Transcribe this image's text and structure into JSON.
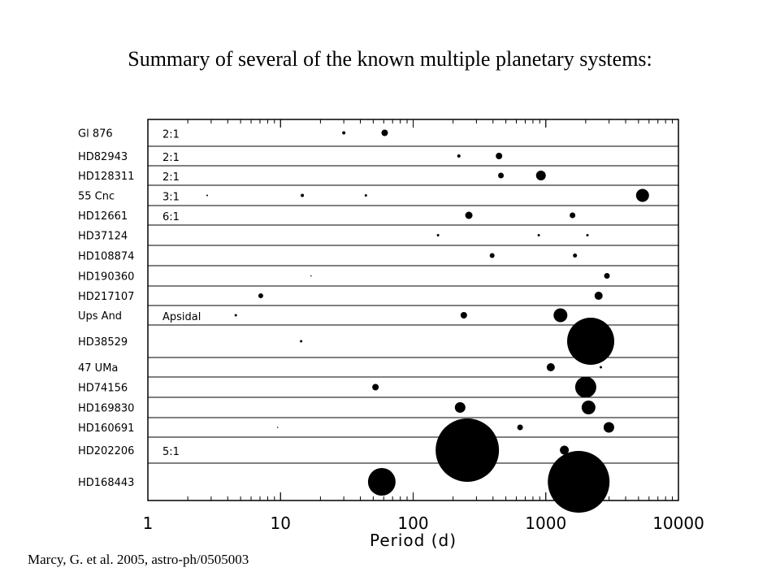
{
  "slide": {
    "title": "Summary of several of the known multiple planetary systems:",
    "citation": "Marcy, G. et al. 2005, astro-ph/0505003"
  },
  "chart_data": {
    "type": "scatter",
    "title": "",
    "xlabel": "Period (d)",
    "ylabel": "",
    "xscale": "log",
    "xlim": [
      1,
      10000
    ],
    "xticks": [
      "1",
      "10",
      "100",
      "1000",
      "10000"
    ],
    "grid": "row separators",
    "marker_color": "#000000",
    "systems": [
      {
        "name": "Gl 876",
        "annotation": "2:1",
        "planets": [
          {
            "period": 30,
            "size": 2
          },
          {
            "period": 61,
            "size": 4
          }
        ]
      },
      {
        "name": "HD82943",
        "annotation": "2:1",
        "planets": [
          {
            "period": 221,
            "size": 2
          },
          {
            "period": 444,
            "size": 4
          }
        ]
      },
      {
        "name": "HD128311",
        "annotation": "2:1",
        "planets": [
          {
            "period": 459,
            "size": 3.5
          },
          {
            "period": 919,
            "size": 6
          }
        ]
      },
      {
        "name": "55 Cnc",
        "annotation": "3:1",
        "planets": [
          {
            "period": 2.8,
            "size": 1
          },
          {
            "period": 14.6,
            "size": 2
          },
          {
            "period": 44,
            "size": 1.5
          },
          {
            "period": 5360,
            "size": 8
          }
        ]
      },
      {
        "name": "HD12661",
        "annotation": "6:1",
        "planets": [
          {
            "period": 263,
            "size": 4.5
          },
          {
            "period": 1590,
            "size": 3.5
          }
        ]
      },
      {
        "name": "HD37124",
        "annotation": "",
        "planets": [
          {
            "period": 154,
            "size": 1.5
          },
          {
            "period": 885,
            "size": 1.5
          },
          {
            "period": 2060,
            "size": 1.5
          }
        ]
      },
      {
        "name": "HD108874",
        "annotation": "",
        "planets": [
          {
            "period": 394,
            "size": 3
          },
          {
            "period": 1660,
            "size": 2.5
          }
        ]
      },
      {
        "name": "HD190360",
        "annotation": "",
        "planets": [
          {
            "period": 17,
            "size": 0.8
          },
          {
            "period": 2890,
            "size": 3.5
          }
        ]
      },
      {
        "name": "HD217107",
        "annotation": "",
        "planets": [
          {
            "period": 7.1,
            "size": 3
          },
          {
            "period": 2500,
            "size": 5
          }
        ]
      },
      {
        "name": "Ups And",
        "annotation": "Apsidal",
        "planets": [
          {
            "period": 4.6,
            "size": 1.5
          },
          {
            "period": 241,
            "size": 4
          },
          {
            "period": 1290,
            "size": 8.5
          }
        ]
      },
      {
        "name": "HD38529",
        "annotation": "",
        "planets": [
          {
            "period": 14.3,
            "size": 1.5
          },
          {
            "period": 2180,
            "size": 29
          }
        ]
      },
      {
        "name": "47 UMa",
        "annotation": "",
        "planets": [
          {
            "period": 1090,
            "size": 5
          },
          {
            "period": 2600,
            "size": 1.5
          }
        ]
      },
      {
        "name": "HD74156",
        "annotation": "",
        "planets": [
          {
            "period": 52,
            "size": 4
          },
          {
            "period": 2000,
            "size": 13
          }
        ]
      },
      {
        "name": "HD169830",
        "annotation": "",
        "planets": [
          {
            "period": 226,
            "size": 6.5
          },
          {
            "period": 2100,
            "size": 8.5
          }
        ]
      },
      {
        "name": "HD160691",
        "annotation": "",
        "planets": [
          {
            "period": 9.5,
            "size": 0.8
          },
          {
            "period": 640,
            "size": 3.5
          },
          {
            "period": 2990,
            "size": 6.5
          }
        ]
      },
      {
        "name": "HD202206",
        "annotation": "5:1",
        "planets": [
          {
            "period": 256,
            "size": 39
          },
          {
            "period": 1380,
            "size": 5.5
          }
        ]
      },
      {
        "name": "HD168443",
        "annotation": "",
        "planets": [
          {
            "period": 58,
            "size": 17
          },
          {
            "period": 1770,
            "size": 38
          }
        ]
      }
    ]
  }
}
